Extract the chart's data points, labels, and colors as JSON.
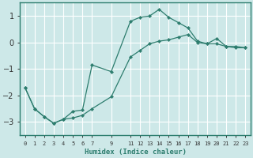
{
  "background_color": "#cde8e8",
  "grid_color": "#ffffff",
  "line_color": "#2d7d6e",
  "xlabel": "Humidex (Indice chaleur)",
  "ylim": [
    -3.5,
    1.5
  ],
  "xlim": [
    -0.5,
    23.5
  ],
  "yticks": [
    -3,
    -2,
    -1,
    0,
    1
  ],
  "xtick_positions": [
    0,
    1,
    2,
    3,
    4,
    5,
    6,
    7,
    9,
    11,
    12,
    13,
    14,
    15,
    16,
    17,
    18,
    19,
    20,
    21,
    22,
    23
  ],
  "xtick_labels": [
    "0",
    "1",
    "2",
    "3",
    "4",
    "5",
    "6",
    "7",
    "9",
    "11",
    "12",
    "13",
    "14",
    "15",
    "16",
    "17",
    "18",
    "19",
    "20",
    "21",
    "22",
    "23"
  ],
  "line1_x": [
    0,
    1,
    2,
    3,
    4,
    5,
    6,
    7,
    9,
    11,
    12,
    13,
    14,
    15,
    16,
    17,
    18,
    19,
    20,
    21,
    22,
    23
  ],
  "line1_y": [
    -1.7,
    -2.5,
    -2.8,
    -3.05,
    -2.9,
    -2.85,
    -2.75,
    -2.5,
    -2.05,
    -0.55,
    -0.3,
    -0.05,
    0.05,
    0.1,
    0.2,
    0.3,
    0.0,
    -0.05,
    -0.05,
    -0.15,
    -0.2,
    -0.2
  ],
  "line2_x": [
    0,
    1,
    2,
    3,
    4,
    5,
    6,
    7,
    9,
    11,
    12,
    13,
    14,
    15,
    16,
    17,
    18,
    19,
    20,
    21,
    22,
    23
  ],
  "line2_y": [
    -1.7,
    -2.5,
    -2.8,
    -3.05,
    -2.9,
    -2.6,
    -2.55,
    -0.85,
    -1.1,
    0.8,
    0.95,
    1.0,
    1.25,
    0.95,
    0.75,
    0.55,
    0.05,
    -0.05,
    0.15,
    -0.15,
    -0.15,
    -0.2
  ]
}
